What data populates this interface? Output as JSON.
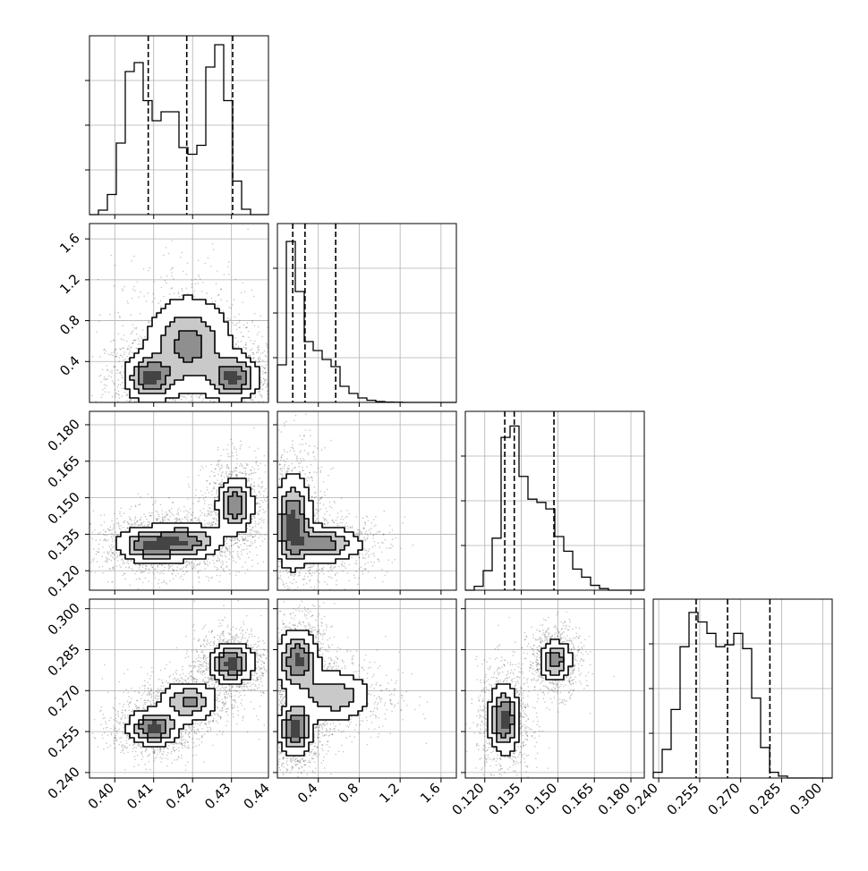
{
  "chart_data": {
    "type": "corner",
    "grid": true,
    "parameters": [
      {
        "index": 0,
        "range": [
          0.3935,
          0.4395
        ],
        "ticks": [
          0.4,
          0.41,
          0.42,
          0.43,
          0.44
        ],
        "tick_labels": [
          "0.40",
          "0.41",
          "0.42",
          "0.43",
          "0.44"
        ],
        "quantiles": [
          0.4086,
          0.4185,
          0.4303
        ],
        "hist_edges_start": 0.3935,
        "hist_bin_width": 0.0023,
        "hist_counts": [
          0,
          10,
          45,
          160,
          320,
          340,
          255,
          210,
          230,
          230,
          150,
          135,
          155,
          330,
          380,
          255,
          75,
          12,
          0,
          0
        ],
        "hist_max": 400
      },
      {
        "index": 1,
        "range": [
          0.0,
          1.75
        ],
        "ticks": [
          0.4,
          0.8,
          1.2,
          1.6
        ],
        "tick_labels": [
          "0.4",
          "0.8",
          "1.2",
          "1.6"
        ],
        "quantiles": [
          0.15,
          0.27,
          0.57
        ],
        "hist_edges_start": 0.0,
        "hist_bin_width": 0.0875,
        "hist_counts": [
          210,
          900,
          620,
          340,
          290,
          240,
          200,
          90,
          50,
          25,
          12,
          5,
          2,
          1,
          0,
          0,
          0,
          0,
          0,
          0
        ],
        "hist_max": 1000
      },
      {
        "index": 2,
        "range": [
          0.112,
          0.1855
        ],
        "ticks": [
          0.12,
          0.135,
          0.15,
          0.165,
          0.18
        ],
        "tick_labels": [
          "0.120",
          "0.135",
          "0.150",
          "0.165",
          "0.180"
        ],
        "quantiles": [
          0.1282,
          0.1321,
          0.1484
        ],
        "hist_edges_start": 0.112,
        "hist_bin_width": 0.003675,
        "hist_counts": [
          0,
          12,
          60,
          160,
          470,
          505,
          350,
          280,
          270,
          250,
          165,
          120,
          65,
          40,
          15,
          5,
          0,
          0,
          0,
          0
        ],
        "hist_max": 550
      },
      {
        "index": 3,
        "range": [
          0.238,
          0.3035
        ],
        "ticks": [
          0.24,
          0.255,
          0.27,
          0.285,
          0.3
        ],
        "tick_labels": [
          "0.240",
          "0.255",
          "0.270",
          "0.285",
          "0.300"
        ],
        "quantiles": [
          0.2537,
          0.2652,
          0.2807
        ],
        "hist_edges_start": 0.238,
        "hist_bin_width": 0.003275,
        "hist_counts": [
          15,
          75,
          180,
          345,
          435,
          410,
          380,
          345,
          350,
          380,
          340,
          210,
          80,
          15,
          5,
          0,
          0,
          0,
          0,
          0
        ],
        "hist_max": 470
      }
    ],
    "density_2d": [
      {
        "x": 0,
        "y": 1,
        "clusters": [
          {
            "cx": 0.409,
            "cy": 0.24,
            "sx": 0.0035,
            "sy": 0.12,
            "weight": 1.0
          },
          {
            "cx": 0.4305,
            "cy": 0.24,
            "sx": 0.0035,
            "sy": 0.12,
            "weight": 1.0
          },
          {
            "cx": 0.419,
            "cy": 0.56,
            "sx": 0.006,
            "sy": 0.26,
            "weight": 0.8
          }
        ]
      },
      {
        "x": 0,
        "y": 2,
        "clusters": [
          {
            "cx": 0.409,
            "cy": 0.1305,
            "sx": 0.0045,
            "sy": 0.004,
            "weight": 1.0
          },
          {
            "cx": 0.4185,
            "cy": 0.132,
            "sx": 0.005,
            "sy": 0.004,
            "weight": 0.9
          },
          {
            "cx": 0.431,
            "cy": 0.147,
            "sx": 0.0025,
            "sy": 0.006,
            "weight": 1.0
          }
        ]
      },
      {
        "x": 0,
        "y": 3,
        "clusters": [
          {
            "cx": 0.41,
            "cy": 0.2565,
            "sx": 0.0035,
            "sy": 0.0035,
            "weight": 1.0
          },
          {
            "cx": 0.419,
            "cy": 0.266,
            "sx": 0.004,
            "sy": 0.004,
            "weight": 0.7
          },
          {
            "cx": 0.43,
            "cy": 0.28,
            "sx": 0.003,
            "sy": 0.004,
            "weight": 1.0
          }
        ]
      },
      {
        "x": 1,
        "y": 2,
        "clusters": [
          {
            "cx": 0.15,
            "cy": 0.14,
            "sx": 0.1,
            "sy": 0.01,
            "weight": 1.0
          },
          {
            "cx": 0.45,
            "cy": 0.131,
            "sx": 0.2,
            "sy": 0.004,
            "weight": 0.8
          }
        ]
      },
      {
        "x": 1,
        "y": 3,
        "clusters": [
          {
            "cx": 0.18,
            "cy": 0.256,
            "sx": 0.09,
            "sy": 0.005,
            "weight": 1.0
          },
          {
            "cx": 0.2,
            "cy": 0.281,
            "sx": 0.11,
            "sy": 0.006,
            "weight": 0.9
          },
          {
            "cx": 0.55,
            "cy": 0.268,
            "sx": 0.2,
            "sy": 0.005,
            "weight": 0.6
          }
        ]
      },
      {
        "x": 2,
        "y": 3,
        "clusters": [
          {
            "cx": 0.128,
            "cy": 0.2595,
            "sx": 0.0035,
            "sy": 0.0065,
            "weight": 1.0
          },
          {
            "cx": 0.149,
            "cy": 0.281,
            "sx": 0.0035,
            "sy": 0.004,
            "weight": 0.8
          }
        ]
      }
    ]
  }
}
